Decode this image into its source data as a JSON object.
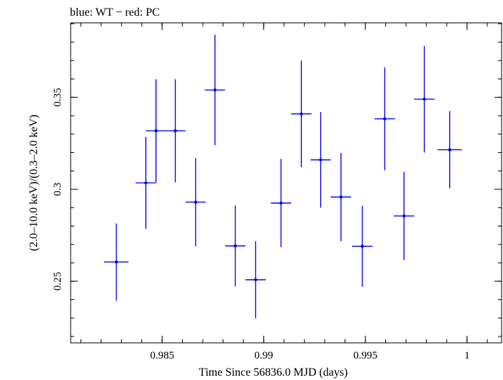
{
  "chart_data": {
    "type": "scatter",
    "title": "blue: WT − red: PC",
    "xlabel": "Time Since 56836.0 MJD (days)",
    "ylabel": "(2.0–10.0 keV)/(0.3–2.0 keV)",
    "xlim": [
      0.9805,
      1.0017
    ],
    "ylim": [
      0.2165,
      0.3905
    ],
    "x_ticks": [
      {
        "value": 0.985,
        "label": "0.985"
      },
      {
        "value": 0.99,
        "label": "0.99"
      },
      {
        "value": 0.995,
        "label": "0.995"
      },
      {
        "value": 1.0,
        "label": "1"
      }
    ],
    "y_ticks": [
      {
        "value": 0.25,
        "label": "0.25"
      },
      {
        "value": 0.3,
        "label": "0.3"
      },
      {
        "value": 0.35,
        "label": "0.35"
      }
    ],
    "grid": false,
    "series": [
      {
        "name": "WT",
        "color": "#0000ee",
        "points": [
          {
            "x": 0.98275,
            "xerr": 0.0006,
            "y": 0.2605,
            "yerr": 0.021
          },
          {
            "x": 0.9842,
            "xerr": 0.0005,
            "y": 0.3035,
            "yerr": 0.025
          },
          {
            "x": 0.9847,
            "xerr": 0.0005,
            "y": 0.3318,
            "yerr": 0.028
          },
          {
            "x": 0.98565,
            "xerr": 0.0005,
            "y": 0.3318,
            "yerr": 0.028
          },
          {
            "x": 0.98665,
            "xerr": 0.0005,
            "y": 0.293,
            "yerr": 0.024
          },
          {
            "x": 0.9876,
            "xerr": 0.0005,
            "y": 0.354,
            "yerr": 0.03
          },
          {
            "x": 0.9886,
            "xerr": 0.0005,
            "y": 0.2692,
            "yerr": 0.022
          },
          {
            "x": 0.9896,
            "xerr": 0.0005,
            "y": 0.2508,
            "yerr": 0.021
          },
          {
            "x": 0.99085,
            "xerr": 0.0005,
            "y": 0.2925,
            "yerr": 0.024
          },
          {
            "x": 0.99185,
            "xerr": 0.0005,
            "y": 0.341,
            "yerr": 0.029
          },
          {
            "x": 0.9928,
            "xerr": 0.0005,
            "y": 0.316,
            "yerr": 0.026
          },
          {
            "x": 0.9938,
            "xerr": 0.0005,
            "y": 0.2958,
            "yerr": 0.024
          },
          {
            "x": 0.99485,
            "xerr": 0.0005,
            "y": 0.269,
            "yerr": 0.022
          },
          {
            "x": 0.99595,
            "xerr": 0.0005,
            "y": 0.3383,
            "yerr": 0.028
          },
          {
            "x": 0.9969,
            "xerr": 0.0005,
            "y": 0.2855,
            "yerr": 0.024
          },
          {
            "x": 0.9979,
            "xerr": 0.0005,
            "y": 0.349,
            "yerr": 0.029
          },
          {
            "x": 0.99915,
            "xerr": 0.0006,
            "y": 0.3215,
            "yerr": 0.021
          }
        ]
      }
    ]
  }
}
